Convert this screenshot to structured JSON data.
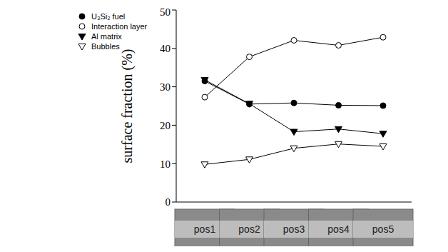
{
  "chart_data": {
    "type": "line",
    "y_label": "surface fraction (%)",
    "categories": [
      "pos1",
      "pos2",
      "pos3",
      "pos4",
      "pos5"
    ],
    "ylim": [
      0,
      50
    ],
    "yticks": [
      0,
      10,
      20,
      30,
      40,
      50
    ],
    "legend": "upper left",
    "grid": false,
    "series": [
      {
        "name": "U₃Si₂ fuel",
        "color": "#000000",
        "marker": "circle",
        "values": [
          31.5,
          25.5,
          25.8,
          25.2,
          25.1
        ]
      },
      {
        "name": "Interaction layer",
        "color": "#000000",
        "marker": "open_circle",
        "values": [
          27.3,
          37.8,
          42.1,
          40.8,
          42.9
        ]
      },
      {
        "name": "Al matrix",
        "color": "#000000",
        "marker": "triangle_down",
        "values": [
          31.8,
          25.6,
          18.3,
          19.0,
          17.8
        ]
      },
      {
        "name": "Bubbles",
        "color": "#000000",
        "marker": "open_triangle_down",
        "values": [
          9.8,
          11.1,
          14.0,
          15.1,
          14.5
        ]
      }
    ]
  }
}
